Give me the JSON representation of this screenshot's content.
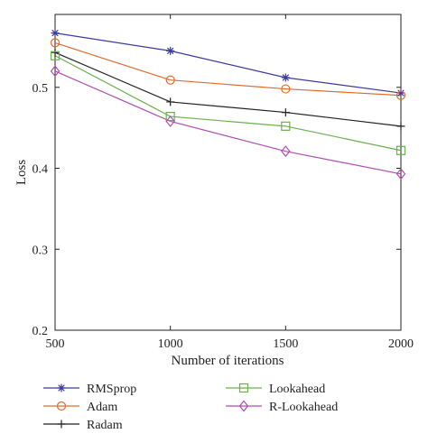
{
  "chart_data": {
    "type": "line",
    "xlabel": "Number of iterations",
    "ylabel": "Loss",
    "x": [
      500,
      1000,
      1500,
      2000
    ],
    "xlim": [
      500,
      2000
    ],
    "ylim": [
      0.2,
      0.59
    ],
    "xticks": [
      "500",
      "1000",
      "1500",
      "2000"
    ],
    "yticks": [
      "0.2",
      "0.3",
      "0.4",
      "0.5"
    ],
    "grid": false,
    "legend_position": "below plot, two columns",
    "series": [
      {
        "name": "RMSprop",
        "color": "#3b3b9a",
        "marker": "asterisk",
        "values": [
          0.567,
          0.545,
          0.512,
          0.493
        ]
      },
      {
        "name": "Adam",
        "color": "#e06a2c",
        "marker": "circle",
        "values": [
          0.555,
          0.509,
          0.498,
          0.49
        ]
      },
      {
        "name": "Radam",
        "color": "#222222",
        "marker": "plus",
        "values": [
          0.543,
          0.482,
          0.469,
          0.452
        ]
      },
      {
        "name": "Lookahead",
        "color": "#6ab04c",
        "marker": "square",
        "values": [
          0.539,
          0.464,
          0.452,
          0.422
        ]
      },
      {
        "name": "R-Lookahead",
        "color": "#b04cb0",
        "marker": "diamond",
        "values": [
          0.52,
          0.458,
          0.421,
          0.393
        ]
      }
    ]
  }
}
